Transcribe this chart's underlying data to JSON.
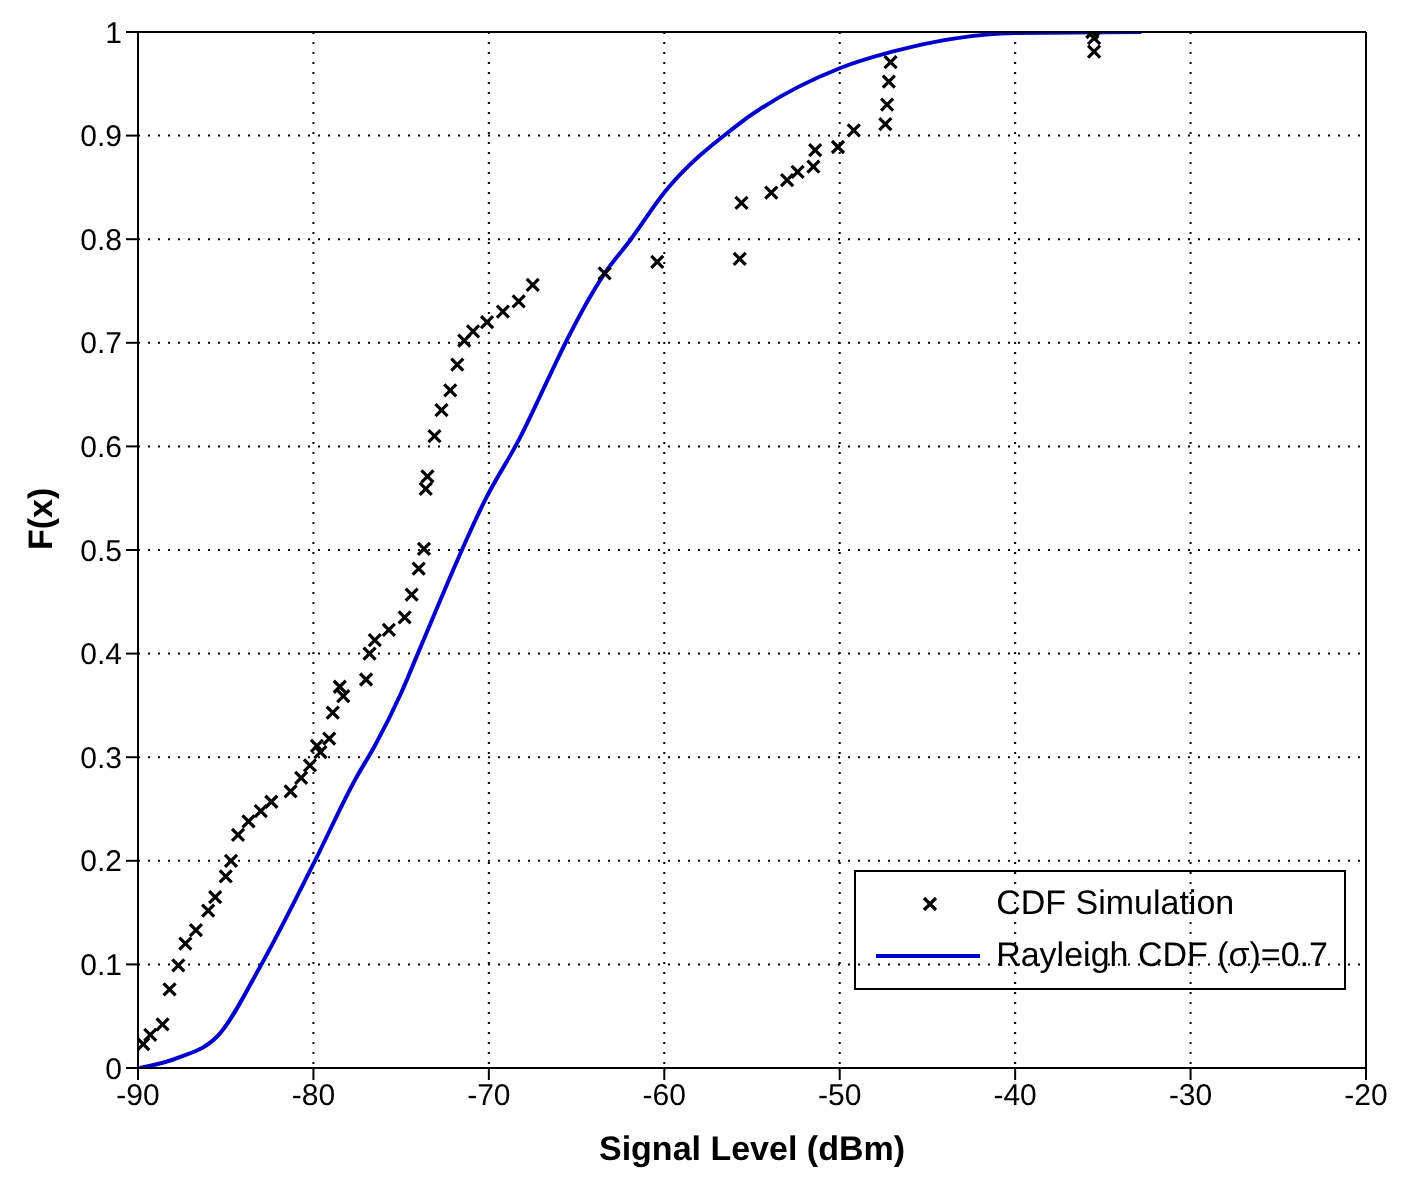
{
  "chart_data": {
    "type": "scatter",
    "xlabel": "Signal Level (dBm)",
    "ylabel": "F(x)",
    "xlim": [
      -90,
      -20
    ],
    "xticks": [
      -90,
      -80,
      -70,
      -60,
      -50,
      -40,
      -30,
      -20
    ],
    "ylim": [
      0,
      1
    ],
    "yticks": [
      0,
      0.1,
      0.2,
      0.3,
      0.4,
      0.5,
      0.6,
      0.7,
      0.8,
      0.9,
      1
    ],
    "grid": true,
    "legend": "bottom right",
    "series": [
      {
        "name": "CDF Simulation",
        "marker": "cross",
        "color": "#000000",
        "x": [
          -89.7,
          -89.3,
          -88.6,
          -88.2,
          -87.7,
          -87.3,
          -86.7,
          -86.0,
          -85.6,
          -85.0,
          -84.7,
          -84.3,
          -83.7,
          -83.0,
          -82.4,
          -81.3,
          -80.7,
          -80.2,
          -79.8,
          -79.6,
          -79.1,
          -78.9,
          -78.5,
          -78.3,
          -77.0,
          -76.8,
          -76.5,
          -75.7,
          -74.8,
          -74.4,
          -74.0,
          -73.7,
          -73.6,
          -73.5,
          -73.1,
          -72.7,
          -72.2,
          -71.8,
          -71.4,
          -70.9,
          -70.1,
          -69.2,
          -68.3,
          -67.5,
          -63.4,
          -60.4,
          -55.7,
          -55.6,
          -53.9,
          -53.0,
          -52.4,
          -51.5,
          -51.4,
          -50.1,
          -49.2,
          -47.4,
          -47.3,
          -47.2,
          -47.1,
          -35.5,
          -35.5,
          -35.6
        ],
        "values": [
          0.023,
          0.032,
          0.042,
          0.076,
          0.099,
          0.12,
          0.133,
          0.152,
          0.165,
          0.185,
          0.2,
          0.225,
          0.238,
          0.248,
          0.257,
          0.267,
          0.28,
          0.292,
          0.311,
          0.305,
          0.318,
          0.343,
          0.368,
          0.359,
          0.375,
          0.4,
          0.413,
          0.423,
          0.435,
          0.457,
          0.482,
          0.501,
          0.559,
          0.571,
          0.61,
          0.635,
          0.654,
          0.679,
          0.702,
          0.711,
          0.72,
          0.73,
          0.74,
          0.756,
          0.767,
          0.778,
          0.781,
          0.835,
          0.845,
          0.857,
          0.865,
          0.87,
          0.886,
          0.889,
          0.905,
          0.911,
          0.93,
          0.952,
          0.971,
          0.981,
          0.994,
          1.0
        ]
      },
      {
        "name": "Rayleigh CDF (σ)=0.7",
        "type": "line",
        "color": "#0000cc",
        "x": [
          -89.9,
          -87.7,
          -85.4,
          -83.0,
          -80.0,
          -77.6,
          -76.5,
          -75.0,
          -73.9,
          -70.1,
          -68.3,
          -66.4,
          -65.6,
          -63.4,
          -61.9,
          -60.0,
          -56.0,
          -50.0,
          -47.0,
          -40.0,
          -32.8
        ],
        "values": [
          0,
          0.01,
          0.032,
          0.099,
          0.197,
          0.279,
          0.311,
          0.362,
          0.406,
          0.552,
          0.606,
          0.673,
          0.701,
          0.767,
          0.8,
          0.845,
          0.908,
          0.965,
          0.981,
          0.999,
          1.0
        ]
      }
    ]
  }
}
